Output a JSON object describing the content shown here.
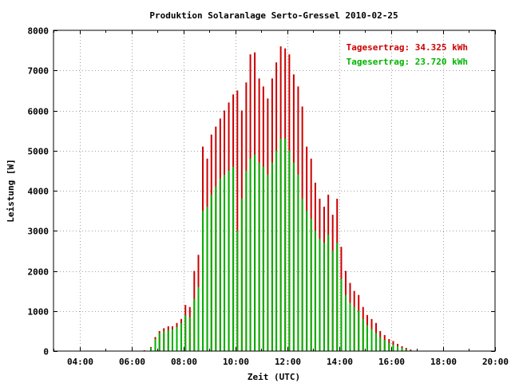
{
  "chart_data": {
    "type": "bar",
    "title": "Produktion Solaranlage Serto-Gressel 2010-02-25",
    "xlabel": "Zeit (UTC)",
    "ylabel": "Leistung [W]",
    "xlim": [
      3.0,
      20.0
    ],
    "ylim": [
      0,
      8000
    ],
    "grid": true,
    "legend_position": "top-right",
    "x_ticks": [
      {
        "value": 4,
        "label": "04:00"
      },
      {
        "value": 6,
        "label": "06:00"
      },
      {
        "value": 8,
        "label": "08:00"
      },
      {
        "value": 10,
        "label": "10:00"
      },
      {
        "value": 12,
        "label": "12:00"
      },
      {
        "value": 14,
        "label": "14:00"
      },
      {
        "value": 16,
        "label": "16:00"
      },
      {
        "value": 18,
        "label": "18:00"
      },
      {
        "value": 20,
        "label": "20:00"
      }
    ],
    "y_ticks": [
      {
        "value": 0,
        "label": "0"
      },
      {
        "value": 1000,
        "label": "1000"
      },
      {
        "value": 2000,
        "label": "2000"
      },
      {
        "value": 3000,
        "label": "3000"
      },
      {
        "value": 4000,
        "label": "4000"
      },
      {
        "value": 5000,
        "label": "5000"
      },
      {
        "value": 6000,
        "label": "6000"
      },
      {
        "value": 7000,
        "label": "7000"
      },
      {
        "value": 8000,
        "label": "8000"
      }
    ],
    "legend": [
      {
        "text": "Tagesertrag: 34.325 kWh",
        "color": "#cc0000"
      },
      {
        "text": "Tagesertrag: 23.720 kWh",
        "color": "#00b400"
      }
    ],
    "series": [
      {
        "color": "#cc0000",
        "points": [
          [
            6.5,
            20
          ],
          [
            6.75,
            100
          ],
          [
            6.92,
            350
          ],
          [
            7.08,
            500
          ],
          [
            7.25,
            570
          ],
          [
            7.42,
            620
          ],
          [
            7.58,
            620
          ],
          [
            7.75,
            700
          ],
          [
            7.92,
            800
          ],
          [
            8.08,
            1150
          ],
          [
            8.25,
            1100
          ],
          [
            8.42,
            2000
          ],
          [
            8.58,
            2400
          ],
          [
            8.75,
            5100
          ],
          [
            8.92,
            4800
          ],
          [
            9.08,
            5400
          ],
          [
            9.25,
            5600
          ],
          [
            9.42,
            5800
          ],
          [
            9.58,
            6000
          ],
          [
            9.75,
            6200
          ],
          [
            9.92,
            6400
          ],
          [
            10.08,
            6500
          ],
          [
            10.25,
            6000
          ],
          [
            10.42,
            6700
          ],
          [
            10.58,
            7400
          ],
          [
            10.75,
            7450
          ],
          [
            10.92,
            6800
          ],
          [
            11.08,
            6600
          ],
          [
            11.25,
            6300
          ],
          [
            11.42,
            6800
          ],
          [
            11.58,
            7200
          ],
          [
            11.75,
            7600
          ],
          [
            11.92,
            7550
          ],
          [
            12.08,
            7400
          ],
          [
            12.25,
            6900
          ],
          [
            12.42,
            6600
          ],
          [
            12.58,
            6100
          ],
          [
            12.75,
            5100
          ],
          [
            12.92,
            4800
          ],
          [
            13.08,
            4200
          ],
          [
            13.25,
            3800
          ],
          [
            13.42,
            3600
          ],
          [
            13.58,
            3900
          ],
          [
            13.75,
            3400
          ],
          [
            13.92,
            3800
          ],
          [
            14.08,
            2600
          ],
          [
            14.25,
            2000
          ],
          [
            14.42,
            1700
          ],
          [
            14.58,
            1500
          ],
          [
            14.75,
            1400
          ],
          [
            14.92,
            1100
          ],
          [
            15.08,
            900
          ],
          [
            15.25,
            800
          ],
          [
            15.42,
            700
          ],
          [
            15.58,
            500
          ],
          [
            15.75,
            400
          ],
          [
            15.92,
            300
          ],
          [
            16.08,
            250
          ],
          [
            16.25,
            180
          ],
          [
            16.42,
            120
          ],
          [
            16.58,
            80
          ],
          [
            16.75,
            40
          ]
        ]
      },
      {
        "color": "#00b400",
        "points": [
          [
            6.5,
            10
          ],
          [
            6.75,
            80
          ],
          [
            6.92,
            300
          ],
          [
            7.08,
            450
          ],
          [
            7.25,
            500
          ],
          [
            7.42,
            520
          ],
          [
            7.58,
            550
          ],
          [
            7.75,
            600
          ],
          [
            7.92,
            700
          ],
          [
            8.08,
            900
          ],
          [
            8.25,
            850
          ],
          [
            8.42,
            1300
          ],
          [
            8.58,
            1600
          ],
          [
            8.75,
            3500
          ],
          [
            8.92,
            3600
          ],
          [
            9.08,
            3900
          ],
          [
            9.25,
            4100
          ],
          [
            9.42,
            4300
          ],
          [
            9.58,
            4400
          ],
          [
            9.75,
            4500
          ],
          [
            9.92,
            4600
          ],
          [
            10.08,
            3000
          ],
          [
            10.25,
            3800
          ],
          [
            10.42,
            4500
          ],
          [
            10.58,
            4800
          ],
          [
            10.75,
            4900
          ],
          [
            10.92,
            4700
          ],
          [
            11.08,
            4600
          ],
          [
            11.25,
            4400
          ],
          [
            11.42,
            4700
          ],
          [
            11.58,
            5000
          ],
          [
            11.75,
            5300
          ],
          [
            11.92,
            5300
          ],
          [
            12.08,
            5000
          ],
          [
            12.25,
            4700
          ],
          [
            12.42,
            4400
          ],
          [
            12.58,
            3800
          ],
          [
            12.75,
            3500
          ],
          [
            12.92,
            3300
          ],
          [
            13.08,
            3000
          ],
          [
            13.25,
            2800
          ],
          [
            13.42,
            2700
          ],
          [
            13.58,
            2900
          ],
          [
            13.75,
            2500
          ],
          [
            13.92,
            2700
          ],
          [
            14.08,
            1800
          ],
          [
            14.25,
            1400
          ],
          [
            14.42,
            1200
          ],
          [
            14.58,
            1100
          ],
          [
            14.75,
            1000
          ],
          [
            14.92,
            800
          ],
          [
            15.08,
            650
          ],
          [
            15.25,
            550
          ],
          [
            15.42,
            450
          ],
          [
            15.58,
            350
          ],
          [
            15.75,
            280
          ],
          [
            15.92,
            200
          ],
          [
            16.08,
            160
          ],
          [
            16.25,
            120
          ],
          [
            16.42,
            80
          ],
          [
            16.58,
            50
          ],
          [
            16.75,
            20
          ]
        ]
      }
    ]
  }
}
